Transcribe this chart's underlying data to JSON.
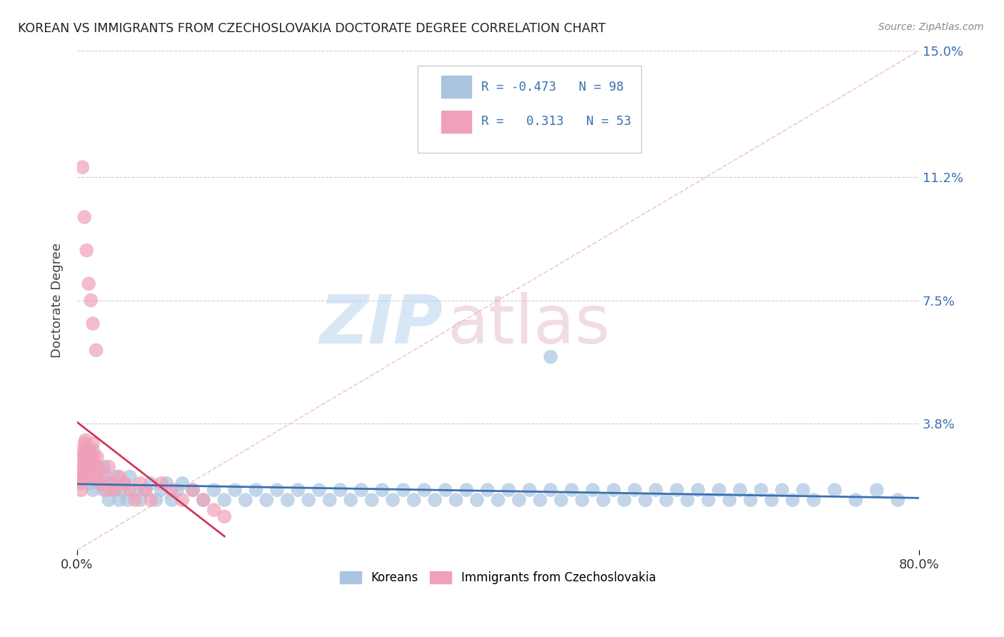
{
  "title": "KOREAN VS IMMIGRANTS FROM CZECHOSLOVAKIA DOCTORATE DEGREE CORRELATION CHART",
  "source": "Source: ZipAtlas.com",
  "ylabel": "Doctorate Degree",
  "xlabel": "",
  "xlim": [
    0.0,
    0.8
  ],
  "ylim": [
    0.0,
    0.15
  ],
  "yticks": [
    0.0,
    0.038,
    0.075,
    0.112,
    0.15
  ],
  "ytick_labels": [
    "",
    "3.8%",
    "7.5%",
    "11.2%",
    "15.0%"
  ],
  "xtick_labels": [
    "0.0%",
    "80.0%"
  ],
  "legend_R_blue": "-0.473",
  "legend_N_blue": "98",
  "legend_R_pink": "0.313",
  "legend_N_pink": "53",
  "blue_color": "#aac4e0",
  "pink_color": "#f0a0b8",
  "blue_line_color": "#3a70b0",
  "pink_line_color": "#d03858",
  "ref_line_color": "#e0b0c0",
  "legend_label_blue": "Koreans",
  "legend_label_pink": "Immigrants from Czechoslovakia",
  "blue_scatter_x": [
    0.005,
    0.008,
    0.01,
    0.012,
    0.015,
    0.015,
    0.018,
    0.02,
    0.022,
    0.025,
    0.025,
    0.028,
    0.03,
    0.032,
    0.035,
    0.038,
    0.04,
    0.042,
    0.045,
    0.048,
    0.05,
    0.055,
    0.06,
    0.065,
    0.07,
    0.075,
    0.08,
    0.085,
    0.09,
    0.095,
    0.1,
    0.11,
    0.12,
    0.13,
    0.14,
    0.15,
    0.16,
    0.17,
    0.18,
    0.19,
    0.2,
    0.21,
    0.22,
    0.23,
    0.24,
    0.25,
    0.26,
    0.27,
    0.28,
    0.29,
    0.3,
    0.31,
    0.32,
    0.33,
    0.34,
    0.35,
    0.36,
    0.37,
    0.38,
    0.39,
    0.4,
    0.41,
    0.42,
    0.43,
    0.44,
    0.45,
    0.46,
    0.47,
    0.48,
    0.49,
    0.5,
    0.51,
    0.52,
    0.53,
    0.54,
    0.55,
    0.56,
    0.57,
    0.58,
    0.59,
    0.6,
    0.61,
    0.62,
    0.63,
    0.64,
    0.65,
    0.66,
    0.67,
    0.68,
    0.69,
    0.7,
    0.72,
    0.74,
    0.76,
    0.78,
    0.008,
    0.012,
    0.45
  ],
  "blue_scatter_y": [
    0.022,
    0.028,
    0.025,
    0.02,
    0.03,
    0.018,
    0.022,
    0.025,
    0.02,
    0.018,
    0.025,
    0.022,
    0.015,
    0.02,
    0.018,
    0.022,
    0.015,
    0.018,
    0.02,
    0.015,
    0.022,
    0.018,
    0.015,
    0.018,
    0.02,
    0.015,
    0.018,
    0.02,
    0.015,
    0.018,
    0.02,
    0.018,
    0.015,
    0.018,
    0.015,
    0.018,
    0.015,
    0.018,
    0.015,
    0.018,
    0.015,
    0.018,
    0.015,
    0.018,
    0.015,
    0.018,
    0.015,
    0.018,
    0.015,
    0.018,
    0.015,
    0.018,
    0.015,
    0.018,
    0.015,
    0.018,
    0.015,
    0.018,
    0.015,
    0.018,
    0.015,
    0.018,
    0.015,
    0.018,
    0.015,
    0.018,
    0.015,
    0.018,
    0.015,
    0.018,
    0.015,
    0.018,
    0.015,
    0.018,
    0.015,
    0.018,
    0.015,
    0.018,
    0.015,
    0.018,
    0.015,
    0.018,
    0.015,
    0.018,
    0.015,
    0.018,
    0.015,
    0.018,
    0.015,
    0.018,
    0.015,
    0.018,
    0.015,
    0.018,
    0.015,
    0.03,
    0.025,
    0.058
  ],
  "pink_scatter_x": [
    0.002,
    0.003,
    0.003,
    0.004,
    0.005,
    0.005,
    0.006,
    0.006,
    0.007,
    0.007,
    0.008,
    0.008,
    0.009,
    0.01,
    0.01,
    0.011,
    0.012,
    0.012,
    0.013,
    0.014,
    0.015,
    0.016,
    0.017,
    0.018,
    0.019,
    0.02,
    0.022,
    0.025,
    0.028,
    0.03,
    0.033,
    0.036,
    0.04,
    0.045,
    0.05,
    0.055,
    0.06,
    0.065,
    0.07,
    0.08,
    0.09,
    0.1,
    0.11,
    0.12,
    0.13,
    0.14,
    0.005,
    0.007,
    0.009,
    0.011,
    0.013,
    0.015,
    0.018
  ],
  "pink_scatter_y": [
    0.022,
    0.02,
    0.025,
    0.018,
    0.028,
    0.022,
    0.03,
    0.025,
    0.032,
    0.028,
    0.033,
    0.03,
    0.025,
    0.022,
    0.028,
    0.025,
    0.03,
    0.022,
    0.028,
    0.025,
    0.032,
    0.028,
    0.025,
    0.022,
    0.028,
    0.025,
    0.02,
    0.022,
    0.018,
    0.025,
    0.02,
    0.018,
    0.022,
    0.02,
    0.018,
    0.015,
    0.02,
    0.018,
    0.015,
    0.02,
    0.018,
    0.015,
    0.018,
    0.015,
    0.012,
    0.01,
    0.115,
    0.1,
    0.09,
    0.08,
    0.075,
    0.068,
    0.06
  ]
}
